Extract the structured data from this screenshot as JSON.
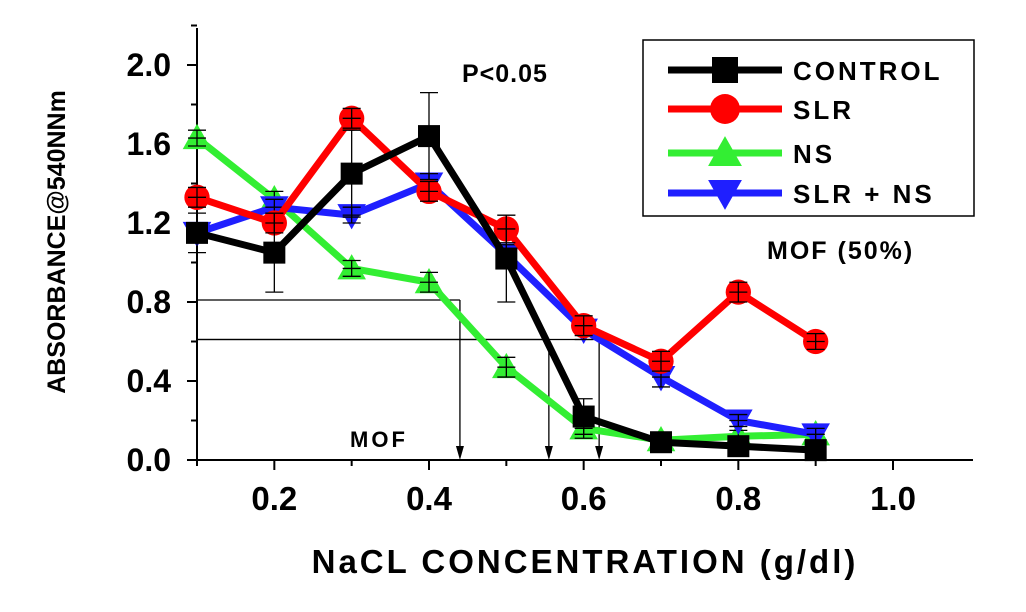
{
  "chart_data": {
    "type": "line",
    "title": "",
    "xlabel": "NaCL CONCENTRATION (g/dl)",
    "ylabel": "ABSORBANCE@540NNm",
    "xlim": [
      0.1,
      1.07
    ],
    "ylim": [
      0.0,
      2.2
    ],
    "x_ticks": [
      "0.2",
      "0.4",
      "0.6",
      "0.8",
      "1.0"
    ],
    "x_tick_values": [
      0.2,
      0.4,
      0.6,
      0.8,
      1.0
    ],
    "y_ticks": [
      "0.0",
      "0.4",
      "0.8",
      "1.2",
      "1.6",
      "2.0"
    ],
    "y_tick_values": [
      0.0,
      0.4,
      0.8,
      1.2,
      1.6,
      2.0
    ],
    "legend_position": "top-right",
    "annotations": {
      "p_value": "P<0.05",
      "mof50": "MOF (50%)",
      "mof": "MOF"
    },
    "series": [
      {
        "name": "CONTROL",
        "color": "#000000",
        "marker": "square",
        "x": [
          0.1,
          0.2,
          0.3,
          0.4,
          0.5,
          0.6,
          0.7,
          0.8,
          0.9
        ],
        "y": [
          1.15,
          1.05,
          1.45,
          1.64,
          1.02,
          0.22,
          0.09,
          0.07,
          0.05
        ],
        "err": [
          0.1,
          0.2,
          0.22,
          0.22,
          0.22,
          0.09,
          0.03,
          0.02,
          0.02
        ]
      },
      {
        "name": "SLR",
        "color": "#ff0000",
        "marker": "circle",
        "x": [
          0.1,
          0.2,
          0.3,
          0.4,
          0.5,
          0.6,
          0.7,
          0.8,
          0.9
        ],
        "y": [
          1.33,
          1.2,
          1.73,
          1.36,
          1.17,
          0.68,
          0.5,
          0.85,
          0.6
        ],
        "err": [
          0.05,
          0.05,
          0.05,
          0.05,
          0.07,
          0.05,
          0.05,
          0.05,
          0.04
        ]
      },
      {
        "name": "NS",
        "color": "#33ee33",
        "marker": "triangle-up",
        "x": [
          0.1,
          0.2,
          0.3,
          0.4,
          0.5,
          0.6,
          0.7,
          0.8,
          0.9
        ],
        "y": [
          1.63,
          1.32,
          0.97,
          0.9,
          0.47,
          0.16,
          0.1,
          0.12,
          0.13
        ],
        "err": [
          0.04,
          0.04,
          0.04,
          0.05,
          0.05,
          0.05,
          0.03,
          0.03,
          0.03
        ]
      },
      {
        "name": "SLR + NS",
        "color": "#1f1fff",
        "marker": "triangle-down",
        "x": [
          0.1,
          0.2,
          0.3,
          0.4,
          0.5,
          0.6,
          0.7,
          0.8,
          0.9
        ],
        "y": [
          1.15,
          1.28,
          1.24,
          1.4,
          1.04,
          0.66,
          0.42,
          0.2,
          0.13
        ],
        "err": [
          0.04,
          0.04,
          0.04,
          0.05,
          0.05,
          0.05,
          0.05,
          0.03,
          0.03
        ]
      }
    ],
    "mof_guides": [
      {
        "y": 0.81,
        "x_end": 0.44
      },
      {
        "y": 0.61,
        "x_end": 0.555
      },
      {
        "y": 0.61,
        "x_end": 0.62
      }
    ]
  }
}
